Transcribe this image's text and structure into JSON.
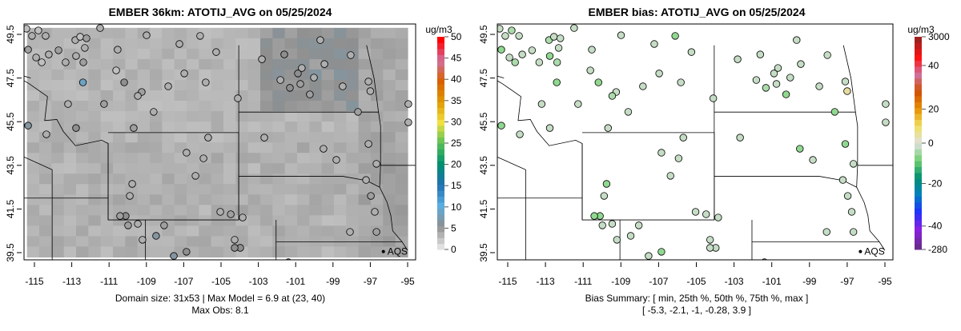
{
  "chart_data": [
    {
      "type": "scatter",
      "title": "EMBER 36km: ATOTIJ_AVG on 05/25/2024",
      "xticks": [
        -115,
        -113,
        -111,
        -109,
        -107,
        -105,
        -103,
        -101,
        -99,
        -97,
        -95
      ],
      "yticks": [
        49.5,
        47.5,
        45.5,
        43.5,
        41.5,
        39.5
      ],
      "xlim": [
        -115.6,
        -94.6
      ],
      "ylim": [
        39.0,
        50.0
      ],
      "colorbar": {
        "unit": "ug/m3",
        "ticks": [
          0,
          5,
          10,
          15,
          20,
          25,
          30,
          35,
          40,
          45,
          50
        ],
        "range": [
          0,
          50
        ]
      },
      "legend": "AQS",
      "footer": [
        "Domain size: 31x53 | Max Model = 6.9 at (23, 40)",
        "Max Obs: 8.1"
      ]
    },
    {
      "type": "scatter",
      "title": "EMBER bias: ATOTIJ_AVG on 05/25/2024",
      "xticks": [
        -115,
        -113,
        -111,
        -109,
        -107,
        -105,
        -103,
        -101,
        -99,
        -97,
        -95
      ],
      "yticks": [
        49.5,
        47.5,
        45.5,
        43.5,
        41.5,
        39.5
      ],
      "xlim": [
        -115.6,
        -94.6
      ],
      "ylim": [
        39.0,
        50.0
      ],
      "colorbar": {
        "unit": "ug/m3",
        "ticks": [
          3000,
          40,
          20,
          0,
          -20,
          -40,
          -280
        ]
      },
      "legend": "AQS",
      "footer": [
        "Bias Summary: [ min, 25th %, 50th %, 75th %, max ]",
        "[ -5.3,   -2.1,   -1,   -0.28,   3.9 ]"
      ]
    }
  ],
  "stations": {
    "lon": [
      -115.43,
      -115.13,
      -114.79,
      -114.4,
      -115.34,
      -114.91,
      -114.61,
      -114.23,
      -113.71,
      -113.33,
      -112.81,
      -112.55,
      -112.21,
      -112.3,
      -112.77,
      -112.38,
      -111.48,
      -110.54,
      -110.62,
      -110.19,
      -108.99,
      -107.23,
      -106.12,
      -105.26,
      -106.97,
      -105.82,
      -107.83,
      -109.25,
      -109.46,
      -108.61,
      -109.68,
      -113.2,
      -112.77,
      -114.36,
      -115.34,
      -111.27,
      -109.76,
      -109.89,
      -110.11,
      -110.41,
      -109.98,
      -109.46,
      -108.05,
      -108.48,
      -109.21,
      -107.53,
      -106.85,
      -106.85,
      -104.1,
      -105.69,
      -105.94,
      -106.37,
      -104.48,
      -103.84,
      -104.27,
      -103.97,
      -104.27,
      -105.04,
      -102.68,
      -101.31,
      -101.82,
      -100.88,
      -100.75,
      -100.24,
      -100.02,
      -100.67,
      -101.61,
      -102.81,
      -99.68,
      -99.46,
      -98.05,
      -98.48,
      -97.1,
      -97.66,
      -99.51,
      -98.82,
      -97.1,
      -96.67,
      -97.23,
      -96.97,
      -96.76,
      -94.96,
      -94.96,
      -96.67,
      -98.09,
      -101.39,
      -112.4,
      -97.0
    ],
    "lat": [
      49.76,
      49.43,
      49.68,
      49.43,
      48.8,
      48.44,
      48.22,
      48.58,
      48.77,
      48.22,
      49.24,
      49.39,
      49.32,
      48.88,
      48.51,
      48.22,
      49.79,
      48.8,
      47.85,
      47.3,
      49.46,
      49.06,
      49.43,
      48.69,
      47.71,
      47.3,
      47.12,
      46.86,
      46.68,
      45.95,
      45.21,
      46.31,
      45.21,
      44.92,
      45.32,
      46.31,
      42.65,
      42.1,
      41.18,
      41.18,
      40.75,
      40.82,
      40.75,
      40.27,
      40.09,
      39.35,
      39.54,
      44.08,
      46.57,
      44.77,
      43.82,
      43.02,
      41.26,
      41.11,
      40.09,
      39.72,
      39.72,
      41.37,
      44.77,
      47.05,
      47.41,
      47.71,
      47.23,
      46.75,
      47.52,
      47.96,
      48.58,
      48.36,
      49.24,
      48.14,
      48.55,
      47.12,
      47.34,
      45.95,
      44.26,
      43.75,
      44.48,
      43.57,
      42.83,
      42.1,
      41.37,
      46.31,
      45.47,
      40.45,
      40.45,
      39.06,
      47.3,
      46.9
    ],
    "obs": [
      2,
      3,
      2,
      3,
      4,
      3,
      2,
      3,
      4,
      3,
      3,
      2,
      4,
      3,
      3,
      4,
      3,
      3,
      2,
      5,
      3,
      3,
      3,
      3,
      3,
      3,
      3,
      4,
      3,
      3,
      4,
      3,
      5,
      3,
      6,
      4,
      3,
      3,
      5,
      4,
      4,
      3,
      4,
      6,
      3,
      6,
      5,
      3,
      3,
      3,
      3,
      3,
      4,
      3,
      3,
      5,
      5,
      3,
      3,
      5,
      3,
      5,
      4,
      4,
      3,
      3,
      5,
      3,
      3,
      3,
      3,
      3,
      3,
      4,
      3,
      3,
      3,
      3,
      3,
      4,
      3,
      3,
      3,
      4,
      3,
      3,
      8.1,
      3
    ],
    "bias": [
      -1,
      -1,
      -2,
      -1,
      -3,
      -1,
      -2,
      -1,
      -1,
      -1,
      -2,
      -1,
      -1,
      -1,
      -3,
      -2,
      -1,
      -1,
      -1,
      -3,
      -1,
      -1,
      -3,
      -1,
      -1,
      -1,
      -1,
      -1,
      -2,
      -1,
      -1,
      -1,
      -1,
      -1,
      -3,
      -1,
      -3,
      -1,
      -3,
      -3,
      -1,
      -1,
      -1,
      -1,
      -1,
      -1,
      -3,
      -1,
      -1,
      -1,
      -1,
      -1,
      -1,
      -1,
      -1,
      -1,
      -1,
      -1,
      -1,
      -2,
      -1,
      -1,
      -1,
      -3,
      -1,
      -1,
      -1,
      -1,
      -1,
      -1,
      -1,
      -1,
      -1,
      -3,
      -3,
      -1,
      -3,
      -1,
      -1,
      -1,
      -1,
      -1,
      -1,
      -1,
      -1,
      -0.28,
      -5.3,
      3.9
    ]
  },
  "legend_label": "AQS",
  "colors": {
    "obs_scale": [
      "#e0e0e0",
      "#8f8f8f",
      "#5aaee0",
      "#1f6fb0",
      "#009070",
      "#58c058",
      "#f0e040",
      "#e09a00",
      "#d86000",
      "#d070a0",
      "#ff0000"
    ],
    "bias_pos": "#e8dca0",
    "bias_zero": "#e0e0e0",
    "bias_neg": "#90d890"
  }
}
